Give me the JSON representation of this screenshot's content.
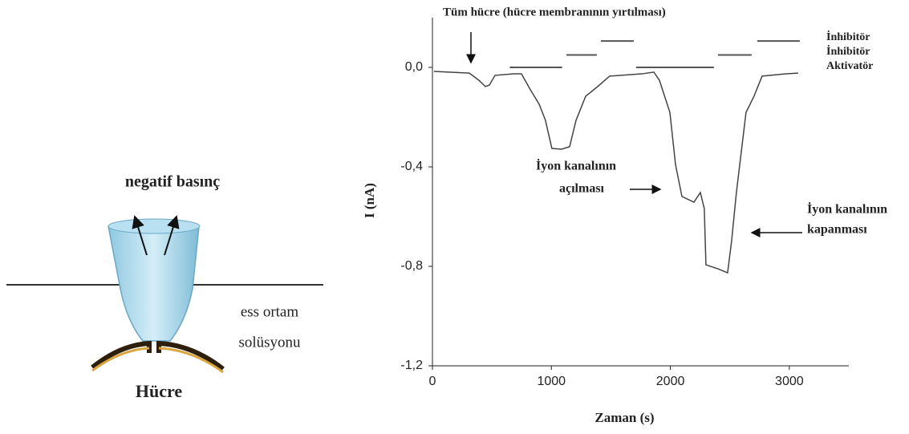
{
  "diagram": {
    "pressure_label": "negatif basınç",
    "medium_label": [
      "ess ortam",
      "solüsyonu"
    ],
    "cell_label": "Hücre"
  },
  "chart_data": {
    "type": "line",
    "xlabel": "Zaman (s)",
    "ylabel": "I (nA)",
    "xlim": [
      0,
      3500
    ],
    "ylim": [
      -1.2,
      0.2
    ],
    "xticks": [
      0,
      1000,
      2000,
      3000
    ],
    "yticks": [
      {
        "value": -1.2,
        "label": "-1,2"
      },
      {
        "value": -0.8,
        "label": "-0,8"
      },
      {
        "value": -0.4,
        "label": "-0,4"
      },
      {
        "value": 0,
        "label": "0,0"
      }
    ],
    "x": [
      13,
      310,
      391,
      445,
      479,
      526,
      681,
      748,
      816,
      897,
      950,
      1004,
      1085,
      1153,
      1207,
      1288,
      1389,
      1490,
      1760,
      1861,
      1908,
      1996,
      2043,
      2097,
      2198,
      2252,
      2285,
      2299,
      2400,
      2481,
      2515,
      2555,
      2636,
      2703,
      2771,
      2973,
      3074
    ],
    "series": [
      {
        "name": "I",
        "color": "#444444",
        "values": [
          -0.016,
          -0.023,
          -0.052,
          -0.077,
          -0.071,
          -0.032,
          -0.026,
          -0.026,
          -0.084,
          -0.148,
          -0.213,
          -0.326,
          -0.329,
          -0.319,
          -0.213,
          -0.116,
          -0.077,
          -0.035,
          -0.026,
          -0.019,
          -0.052,
          -0.181,
          -0.39,
          -0.519,
          -0.542,
          -0.503,
          -0.568,
          -0.794,
          -0.81,
          -0.826,
          -0.697,
          -0.503,
          -0.181,
          -0.116,
          -0.035,
          -0.026,
          -0.023
        ]
      }
    ],
    "application_bars": [
      {
        "start": 650,
        "end": 1090,
        "level": 0.0
      },
      {
        "start": 1126,
        "end": 1382,
        "level": 0.05
      },
      {
        "start": 1416,
        "end": 1692,
        "level": 0.106
      },
      {
        "start": 1712,
        "end": 2366,
        "level": 0.0
      },
      {
        "start": 2400,
        "end": 2683,
        "level": 0.05
      },
      {
        "start": 2730,
        "end": 3088,
        "level": 0.106
      }
    ],
    "bar_legend": [
      "İnhibitör",
      "İnhibitör",
      "Aktivatör"
    ],
    "annotations": [
      {
        "lines": [
          "Tüm hücre (hücre membranının yırtılması)"
        ]
      },
      {
        "lines": [
          "İyon kanalının",
          "açılması"
        ]
      },
      {
        "lines": [
          "İyon kanalının",
          "kapanması"
        ]
      }
    ]
  }
}
